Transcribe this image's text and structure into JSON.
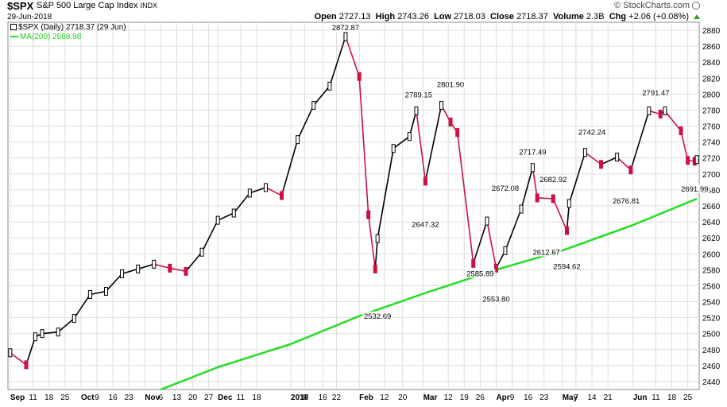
{
  "header": {
    "symbol": "$SPX",
    "name": "S&P 500 Large Cap Index",
    "exchange": "INDX",
    "date": "29-Jun-2018",
    "credit": "© StockCharts.com",
    "open_label": "Open",
    "open": "2727.13",
    "high_label": "High",
    "high": "2743.26",
    "low_label": "Low",
    "low": "2718.03",
    "close_label": "Close",
    "close": "2718.37",
    "volume_label": "Volume",
    "volume": "2.3B",
    "chg_label": "Chg",
    "chg": "+2.06 (+0.08%)"
  },
  "legend": {
    "price": "$SPX (Daily) 2718.37 (29 Jun)",
    "ma": "MA(200) 2668.98"
  },
  "colors": {
    "up": "#000000",
    "down": "#cc1144",
    "ma": "#22dd22",
    "grid": "#dddddd"
  },
  "chart_data": {
    "type": "line",
    "y_axis_side": "right",
    "ylim": [
      2430,
      2890
    ],
    "y_ticks": [
      2440,
      2460,
      2480,
      2500,
      2520,
      2540,
      2560,
      2580,
      2600,
      2620,
      2640,
      2660,
      2680,
      2700,
      2720,
      2740,
      2760,
      2780,
      2800,
      2820,
      2840,
      2860,
      2880
    ],
    "x_ticks": [
      {
        "label": "Sep",
        "date": "2017-09-01",
        "bold": true
      },
      {
        "label": "11",
        "date": "2017-09-11"
      },
      {
        "label": "18",
        "date": "2017-09-18"
      },
      {
        "label": "25",
        "date": "2017-09-25"
      },
      {
        "label": "Oct",
        "date": "2017-10-02",
        "bold": true
      },
      {
        "label": "9",
        "date": "2017-10-09"
      },
      {
        "label": "16",
        "date": "2017-10-16"
      },
      {
        "label": "23",
        "date": "2017-10-23"
      },
      {
        "label": "Nov",
        "date": "2017-10-30",
        "bold": true
      },
      {
        "label": "6",
        "date": "2017-11-06"
      },
      {
        "label": "13",
        "date": "2017-11-13"
      },
      {
        "label": "20",
        "date": "2017-11-20"
      },
      {
        "label": "27",
        "date": "2017-11-27"
      },
      {
        "label": "Dec",
        "date": "2017-12-01",
        "bold": true
      },
      {
        "label": "11",
        "date": "2017-12-11"
      },
      {
        "label": "18",
        "date": "2017-12-18"
      },
      {
        "label": "2018",
        "date": "2018-01-02",
        "bold": true
      },
      {
        "label": "8",
        "date": "2018-01-08"
      },
      {
        "label": "16",
        "date": "2018-01-16"
      },
      {
        "label": "22",
        "date": "2018-01-22"
      },
      {
        "label": "Feb",
        "date": "2018-02-01",
        "bold": true
      },
      {
        "label": "12",
        "date": "2018-02-12"
      },
      {
        "label": "20",
        "date": "2018-02-20"
      },
      {
        "label": "Mar",
        "date": "2018-03-01",
        "bold": true
      },
      {
        "label": "12",
        "date": "2018-03-12"
      },
      {
        "label": "19",
        "date": "2018-03-19"
      },
      {
        "label": "26",
        "date": "2018-03-26"
      },
      {
        "label": "Apr",
        "date": "2018-04-02",
        "bold": true
      },
      {
        "label": "9",
        "date": "2018-04-09"
      },
      {
        "label": "16",
        "date": "2018-04-16"
      },
      {
        "label": "23",
        "date": "2018-04-23"
      },
      {
        "label": "May",
        "date": "2018-05-01",
        "bold": true
      },
      {
        "label": "7",
        "date": "2018-05-07"
      },
      {
        "label": "14",
        "date": "2018-05-14"
      },
      {
        "label": "21",
        "date": "2018-05-21"
      },
      {
        "label": "Jun",
        "date": "2018-06-01",
        "bold": true
      },
      {
        "label": "11",
        "date": "2018-06-11"
      },
      {
        "label": "18",
        "date": "2018-06-18"
      },
      {
        "label": "25",
        "date": "2018-06-25"
      }
    ],
    "x_range": [
      "2017-08-31",
      "2018-06-30"
    ],
    "price_series": [
      [
        "2017-09-01",
        2476
      ],
      [
        "2017-09-08",
        2461
      ],
      [
        "2017-09-12",
        2496
      ],
      [
        "2017-09-15",
        2500
      ],
      [
        "2017-09-22",
        2502
      ],
      [
        "2017-09-29",
        2519
      ],
      [
        "2017-10-06",
        2549
      ],
      [
        "2017-10-13",
        2553
      ],
      [
        "2017-10-20",
        2575
      ],
      [
        "2017-10-27",
        2581
      ],
      [
        "2017-11-03",
        2587
      ],
      [
        "2017-11-10",
        2582
      ],
      [
        "2017-11-17",
        2578
      ],
      [
        "2017-11-24",
        2602
      ],
      [
        "2017-12-01",
        2642
      ],
      [
        "2017-12-08",
        2651
      ],
      [
        "2017-12-15",
        2676
      ],
      [
        "2017-12-22",
        2683
      ],
      [
        "2017-12-29",
        2673
      ],
      [
        "2018-01-05",
        2743
      ],
      [
        "2018-01-12",
        2786
      ],
      [
        "2018-01-19",
        2810
      ],
      [
        "2018-01-26",
        2872
      ],
      [
        "2018-02-01",
        2822
      ],
      [
        "2018-02-05",
        2649
      ],
      [
        "2018-02-08",
        2581
      ],
      [
        "2018-02-09",
        2619
      ],
      [
        "2018-02-16",
        2732
      ],
      [
        "2018-02-23",
        2747
      ],
      [
        "2018-02-26",
        2779
      ],
      [
        "2018-03-02",
        2691
      ],
      [
        "2018-03-09",
        2786
      ],
      [
        "2018-03-13",
        2765
      ],
      [
        "2018-03-16",
        2752
      ],
      [
        "2018-03-23",
        2588
      ],
      [
        "2018-03-29",
        2641
      ],
      [
        "2018-04-02",
        2582
      ],
      [
        "2018-04-06",
        2604
      ],
      [
        "2018-04-13",
        2656
      ],
      [
        "2018-04-18",
        2708
      ],
      [
        "2018-04-20",
        2670
      ],
      [
        "2018-04-27",
        2669
      ],
      [
        "2018-05-03",
        2629
      ],
      [
        "2018-05-04",
        2663
      ],
      [
        "2018-05-11",
        2727
      ],
      [
        "2018-05-18",
        2712
      ],
      [
        "2018-05-25",
        2721
      ],
      [
        "2018-05-31",
        2705
      ],
      [
        "2018-06-08",
        2779
      ],
      [
        "2018-06-13",
        2775
      ],
      [
        "2018-06-15",
        2779
      ],
      [
        "2018-06-22",
        2754
      ],
      [
        "2018-06-25",
        2717
      ],
      [
        "2018-06-28",
        2716
      ],
      [
        "2018-06-29",
        2718
      ]
    ],
    "ma_series": [
      [
        "2017-11-06",
        2430
      ],
      [
        "2017-12-01",
        2458
      ],
      [
        "2018-01-02",
        2487
      ],
      [
        "2018-02-01",
        2522
      ],
      [
        "2018-03-01",
        2550
      ],
      [
        "2018-04-02",
        2580
      ],
      [
        "2018-05-01",
        2604
      ],
      [
        "2018-06-01",
        2636
      ],
      [
        "2018-06-29",
        2669
      ]
    ],
    "annotations": [
      {
        "text": "2872.87",
        "date": "2018-01-26",
        "value": 2872.87,
        "pos": "above"
      },
      {
        "text": "2532.69",
        "date": "2018-02-09",
        "value": 2532.69,
        "pos": "below"
      },
      {
        "text": "2789.15",
        "date": "2018-02-27",
        "value": 2789.15,
        "pos": "above"
      },
      {
        "text": "2647.32",
        "date": "2018-03-02",
        "value": 2647.32,
        "pos": "below"
      },
      {
        "text": "2801.90",
        "date": "2018-03-13",
        "value": 2801.9,
        "pos": "above"
      },
      {
        "text": "2585.89",
        "date": "2018-03-26",
        "value": 2585.89,
        "pos": "below"
      },
      {
        "text": "2553.80",
        "date": "2018-04-02",
        "value": 2553.8,
        "pos": "below"
      },
      {
        "text": "2672.08",
        "date": "2018-04-06",
        "value": 2672.08,
        "pos": "above"
      },
      {
        "text": "2717.49",
        "date": "2018-04-18",
        "value": 2717.49,
        "pos": "above"
      },
      {
        "text": "2612.67",
        "date": "2018-04-24",
        "value": 2612.67,
        "pos": "below"
      },
      {
        "text": "2682.92",
        "date": "2018-04-27",
        "value": 2682.92,
        "pos": "above"
      },
      {
        "text": "2594.62",
        "date": "2018-05-03",
        "value": 2594.62,
        "pos": "below"
      },
      {
        "text": "2742.24",
        "date": "2018-05-14",
        "value": 2742.24,
        "pos": "above"
      },
      {
        "text": "2676.81",
        "date": "2018-05-29",
        "value": 2676.81,
        "pos": "below"
      },
      {
        "text": "2791.47",
        "date": "2018-06-11",
        "value": 2791.47,
        "pos": "above"
      },
      {
        "text": "2691.99",
        "date": "2018-06-28",
        "value": 2691.99,
        "pos": "below"
      }
    ]
  }
}
